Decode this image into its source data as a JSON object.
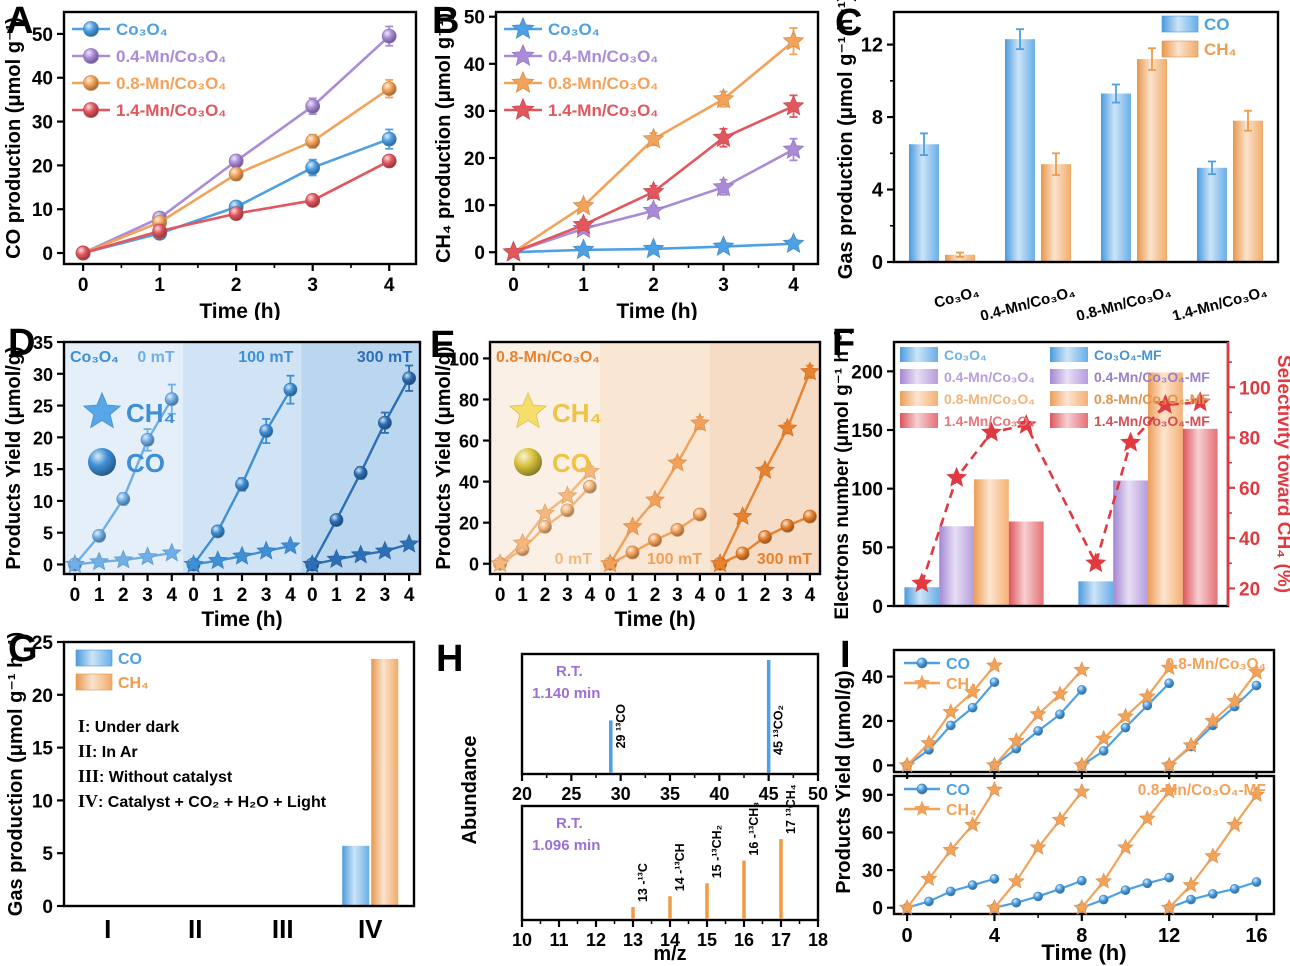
{
  "chart_data": {
    "panels": {
      "A": {
        "label": "A",
        "type": "line",
        "xlabel": "Time (h)",
        "ylabel": "CO production (μmol g⁻¹)",
        "x": [
          0,
          1,
          2,
          3,
          4
        ],
        "xticks": [
          0,
          1,
          2,
          3,
          4
        ],
        "yticks": [
          0,
          10,
          20,
          30,
          40,
          50
        ],
        "xlim": [
          -0.25,
          4.35
        ],
        "ylim": [
          -2.5,
          55
        ],
        "marker": "sphere",
        "series": [
          {
            "name": "Co₃O₄",
            "color": "#4DA0E4",
            "values": [
              0,
              4.5,
              10.5,
              19.5,
              26
            ],
            "err": [
              0,
              1.2,
              1.2,
              1.8,
              2.2
            ]
          },
          {
            "name": "0.4-Mn/Co₃O₄",
            "color": "#A98BD8",
            "values": [
              0,
              8,
              21,
              33.5,
              49.5
            ],
            "err": [
              0,
              0.9,
              1.2,
              1.8,
              2.2
            ]
          },
          {
            "name": "0.8-Mn/Co₃O₄",
            "color": "#F3A259",
            "values": [
              0,
              7,
              18,
              25.5,
              37.5
            ],
            "err": [
              0,
              1.2,
              1.3,
              1.5,
              2
            ]
          },
          {
            "name": "1.4-Mn/Co₃O₄",
            "color": "#E2575E",
            "values": [
              0,
              5,
              9,
              12,
              21
            ],
            "err": [
              0,
              1.5,
              1.2,
              0.9,
              0.9
            ]
          }
        ]
      },
      "B": {
        "label": "B",
        "type": "line",
        "xlabel": "Time (h)",
        "ylabel": "CH₄ production (μmol g⁻¹)",
        "x": [
          0,
          1,
          2,
          3,
          4
        ],
        "xticks": [
          0,
          1,
          2,
          3,
          4
        ],
        "yticks": [
          0,
          10,
          20,
          30,
          40,
          50
        ],
        "xlim": [
          -0.25,
          4.35
        ],
        "ylim": [
          -2.5,
          51
        ],
        "marker": "star",
        "series": [
          {
            "name": "Co₃O₄",
            "color": "#4DA0E4",
            "values": [
              0,
              0.5,
              0.7,
              1.2,
              1.8
            ],
            "err": [
              0,
              0.6,
              0.6,
              0.6,
              0.9
            ]
          },
          {
            "name": "0.4-Mn/Co₃O₄",
            "color": "#A98BD8",
            "values": [
              0,
              5,
              8.8,
              13.8,
              21.8
            ],
            "err": [
              0,
              0.9,
              1.1,
              1.6,
              2.3
            ]
          },
          {
            "name": "0.8-Mn/Co₃O₄",
            "color": "#F3A259",
            "values": [
              0,
              9.8,
              24,
              32.5,
              44.8
            ],
            "err": [
              0,
              0.9,
              1.3,
              1.6,
              2.8
            ]
          },
          {
            "name": "1.4-Mn/Co₃O₄",
            "color": "#E2575E",
            "values": [
              0,
              5.8,
              12.8,
              24.3,
              31
            ],
            "err": [
              0,
              1.1,
              1.3,
              1.9,
              2.3
            ]
          }
        ]
      },
      "C": {
        "label": "C",
        "type": "groupbar",
        "ylabel": "Gas production (μmol g⁻¹ h⁻¹)",
        "yticks": [
          0,
          4,
          8,
          12
        ],
        "ylim": [
          0,
          13.8
        ],
        "categories": [
          "Co₃O₄",
          "0.4-Mn/Co₃O₄",
          "0.8-Mn/Co₃O₄",
          "1.4-Mn/Co₃O₄"
        ],
        "series": [
          {
            "name": "CO",
            "color": "#4DA0E4",
            "values": [
              6.5,
              12.3,
              9.3,
              5.2
            ],
            "err": [
              0.6,
              0.55,
              0.5,
              0.35
            ]
          },
          {
            "name": "CH₄",
            "color": "#EE9C4E",
            "values": [
              0.4,
              5.4,
              11.2,
              7.8
            ],
            "err": [
              0.12,
              0.6,
              0.6,
              0.55
            ]
          }
        ]
      },
      "D": {
        "label": "D",
        "type": "segline",
        "title": "Co₃O₄",
        "title_color": "#3E8FD6",
        "xlabel": "Time (h)",
        "ylabel": "Products Yield (μmol/g)",
        "ylim": [
          -1.5,
          35
        ],
        "yticks": [
          0,
          5,
          10,
          15,
          20,
          25,
          30,
          35
        ],
        "mt_label_pos": "top",
        "legend": {
          "star_label": "CH₄",
          "sphere_label": "CO",
          "star_color": "#57A7E8",
          "sphere_color": "#3E8FD6",
          "text_color": "#3E8FD6"
        },
        "segments": [
          {
            "label": "0 mT",
            "bg": "#E4EFFA",
            "color": "#6FAEE6",
            "co": [
              0,
              4.5,
              10.3,
              19.6,
              26
            ],
            "ch4": [
              0,
              0.4,
              0.7,
              1.2,
              1.8
            ],
            "co_err": [
              0,
              0.5,
              0.9,
              1.7,
              2.3
            ]
          },
          {
            "label": "100 mT",
            "bg": "#D0E4F5",
            "color": "#3E8FD6",
            "co": [
              0,
              5.2,
              12.6,
              21,
              27.5
            ],
            "ch4": [
              0,
              0.6,
              1.3,
              2.1,
              2.9
            ],
            "co_err": [
              0,
              0.5,
              1,
              1.9,
              2.2
            ]
          },
          {
            "label": "300 mT",
            "bg": "#BBD7F0",
            "color": "#2D6FB5",
            "co": [
              0,
              7,
              14.4,
              22.3,
              29.3
            ],
            "ch4": [
              0,
              0.8,
              1.5,
              2.1,
              3.2
            ],
            "co_err": [
              0,
              0.5,
              0.9,
              1.6,
              2
            ]
          }
        ]
      },
      "E": {
        "label": "E",
        "type": "segline",
        "title": "0.8-Mn/Co₃O₄",
        "title_color": "#E8832F",
        "xlabel": "Time (h)",
        "ylabel": "Products Yield (μmol/g)",
        "ylim": [
          -5,
          108
        ],
        "yticks": [
          0,
          20,
          40,
          60,
          80,
          100
        ],
        "mt_label_pos": "bottom",
        "legend": {
          "star_label": "CH₄",
          "sphere_label": "CO",
          "star_color": "#F5DE6A",
          "sphere_color": "#D8C43E",
          "text_color": "#F0C245"
        },
        "segments": [
          {
            "label": "0 mT",
            "bg": "#FBF0E5",
            "color": "#F4B87E",
            "co": [
              0,
              7,
              18,
              26,
              37.5
            ],
            "ch4": [
              0,
              10,
              24.5,
              33,
              45
            ],
            "ch4_err": [
              0,
              1.2,
              1.5,
              1.5,
              2.5
            ]
          },
          {
            "label": "100 mT",
            "bg": "#F9E6D3",
            "color": "#F3A159",
            "co": [
              0,
              5.5,
              11.5,
              16.5,
              24
            ],
            "ch4": [
              0,
              18,
              31,
              49,
              68.5
            ],
            "ch4_err": [
              0,
              1.2,
              1.5,
              2,
              3
            ]
          },
          {
            "label": "300 mT",
            "bg": "#F7DCC5",
            "color": "#E8822F",
            "co": [
              0,
              5,
              13,
              18.5,
              23
            ],
            "ch4": [
              0,
              23,
              45.5,
              66,
              93.5
            ],
            "ch4_err": [
              0,
              1.5,
              2,
              2.5,
              3
            ]
          }
        ]
      },
      "F": {
        "label": "F",
        "type": "barline",
        "ylabel_left": "Electrons number (μmol g⁻¹ h⁻¹)",
        "ylabel_right": "Selectivity toward CH₄ (%)",
        "ylim_left": [
          0,
          225
        ],
        "yticks_left": [
          0,
          50,
          100,
          150,
          200
        ],
        "ylim_right": [
          13,
          118
        ],
        "yticks_right": [
          20,
          40,
          60,
          80,
          100
        ],
        "right_color": "#E0393F",
        "bars": [
          {
            "name": "Co₃O₄",
            "color": "#4DA0E4",
            "value": 16
          },
          {
            "name": "0.4-Mn/Co₃O₄",
            "color": "#A98BD8",
            "value": 68
          },
          {
            "name": "0.8-Mn/Co₃O₄",
            "color": "#F3A259",
            "value": 108
          },
          {
            "name": "1.4-Mn/Co₃O₄",
            "color": "#E2575E",
            "value": 72
          },
          {
            "name": "Co₃O₄-MF",
            "color": "#4DA0E4",
            "value": 21
          },
          {
            "name": "0.4-Mn/Co₃O₄-MF",
            "color": "#A98BD8",
            "value": 107
          },
          {
            "name": "0.8-Mn/Co₃O₄-MF",
            "color": "#F3A259",
            "value": 199
          },
          {
            "name": "1.4-Mn/Co₃O₄-MF",
            "color": "#E2575E",
            "value": 151
          }
        ],
        "selectivity": [
          22,
          64,
          82,
          85,
          30,
          78,
          93,
          94
        ]
      },
      "G": {
        "label": "G",
        "type": "condbar",
        "ylabel": "Gas production (μmol g⁻¹ h⁻¹)",
        "ylim": [
          0,
          25
        ],
        "yticks": [
          0,
          5,
          10,
          15,
          20,
          25
        ],
        "categories": [
          "I",
          "II",
          "III",
          "IV"
        ],
        "series": [
          {
            "name": "CO",
            "color": "#4DA0E4",
            "values": [
              0,
              0,
              0,
              5.7
            ]
          },
          {
            "name": "CH₄",
            "color": "#EE9C4E",
            "values": [
              0,
              0,
              0,
              23.4
            ]
          }
        ],
        "annotations": [
          {
            "numeral": "I",
            "text": "Under dark"
          },
          {
            "numeral": "II",
            "text": "In Ar"
          },
          {
            "numeral": "III",
            "text": "Without catalyst"
          },
          {
            "numeral": "IV",
            "text": "Catalyst + CO₂ + H₂O + Light"
          }
        ]
      },
      "H": {
        "label": "H",
        "type": "stems",
        "ylabel": "Abundance",
        "xlabel": "m/z",
        "rt_color": "#9B6FD8",
        "subpanels": [
          {
            "rt": [
              "R.T.",
              "1.140 min"
            ],
            "color": "#4DA0E4",
            "xlim": [
              20,
              50
            ],
            "xticks": [
              20,
              25,
              30,
              35,
              40,
              45,
              50
            ],
            "peaks": [
              {
                "mz": 29,
                "h": 0.47,
                "label": "29 ¹³CO"
              },
              {
                "mz": 45,
                "h": 1.0,
                "label": "45 ¹³CO₂"
              }
            ]
          },
          {
            "rt": [
              "R.T.",
              "1.096 min"
            ],
            "color": "#F09A45",
            "xlim": [
              10,
              18
            ],
            "xticks": [
              10,
              11,
              12,
              13,
              14,
              15,
              16,
              17,
              18
            ],
            "peaks": [
              {
                "mz": 13,
                "h": 0.12,
                "label": "13 -¹³C"
              },
              {
                "mz": 14,
                "h": 0.22,
                "label": "14 -¹³CH"
              },
              {
                "mz": 15,
                "h": 0.34,
                "label": "15 -¹³CH₂"
              },
              {
                "mz": 16,
                "h": 0.55,
                "label": "16 -¹³CH₃"
              },
              {
                "mz": 17,
                "h": 0.75,
                "label": "17 ¹³CH₄"
              }
            ]
          }
        ]
      },
      "I": {
        "label": "I",
        "type": "cycles",
        "xlabel": "Time (h)",
        "ylabel": "Products Yield (μmol/g)",
        "xlim": [
          -0.6,
          16.8
        ],
        "xticks": [
          0,
          4,
          8,
          12,
          16
        ],
        "co_color": "#4DA0E4",
        "ch4_color": "#F3A259",
        "legend": {
          "co": "CO",
          "ch4": "CH₄"
        },
        "subpanels": [
          {
            "title": "0.8-Mn/Co₃O₄",
            "ylim": [
              -3,
              52
            ],
            "yticks": [
              0,
              20,
              40
            ],
            "co": [
              [
                0,
                7,
                18,
                26,
                37.5
              ],
              [
                0,
                7.5,
                15.5,
                23,
                34
              ],
              [
                0,
                6.5,
                17,
                27,
                37
              ],
              [
                0,
                8.5,
                18,
                26.5,
                36
              ]
            ],
            "ch4": [
              [
                0,
                10,
                24,
                33,
                45
              ],
              [
                0,
                11,
                23,
                32,
                43
              ],
              [
                0,
                12,
                22,
                31,
                44
              ],
              [
                0,
                9,
                20,
                29,
                42
              ]
            ]
          },
          {
            "title": "0.8-Mn/Co₃O₄-MF",
            "ylim": [
              -5,
              105
            ],
            "yticks": [
              0,
              30,
              60,
              90
            ],
            "co": [
              [
                0,
                5,
                13,
                18,
                23
              ],
              [
                0,
                4,
                9,
                15,
                21.5
              ],
              [
                0,
                6.5,
                14,
                19.5,
                24
              ],
              [
                0,
                6.5,
                11,
                15,
                20.5
              ]
            ],
            "ch4": [
              [
                0,
                23,
                46,
                66,
                94
              ],
              [
                0,
                21,
                48,
                70,
                92.5
              ],
              [
                0,
                21,
                48,
                71,
                93
              ],
              [
                0,
                18,
                41,
                66,
                90
              ]
            ]
          }
        ]
      }
    }
  }
}
